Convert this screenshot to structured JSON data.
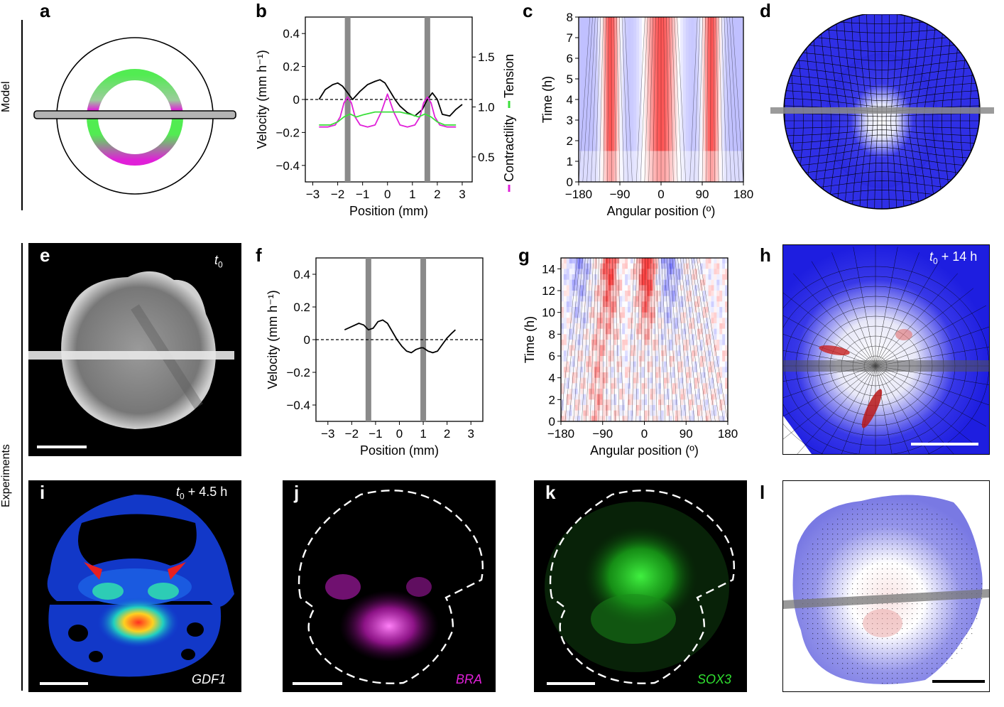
{
  "side_labels": {
    "model": "Model",
    "experiments": "Experiments"
  },
  "panel_labels": [
    "a",
    "b",
    "c",
    "d",
    "e",
    "f",
    "g",
    "h",
    "i",
    "j",
    "k",
    "l"
  ],
  "colors": {
    "magenta": "#e020d8",
    "green": "#3adf3a",
    "grey": "#808080"
  },
  "panel_e": {
    "time": "t",
    "sub": "0"
  },
  "panel_h": {
    "time": "t",
    "sub": "0",
    "suffix": " + 14 h"
  },
  "panel_i": {
    "time": "t",
    "sub": "0",
    "suffix": " + 4.5 h",
    "gene": "GDF1"
  },
  "panel_j": {
    "gene": "BRA"
  },
  "panel_k": {
    "gene": "SOX3"
  },
  "chart_data": [
    {
      "id": "b",
      "type": "line",
      "xlabel": "Position (mm)",
      "ylabel": "Velocity (mm h⁻¹)",
      "y2label_contractility": "Contractility",
      "y2label_tension": "Tension",
      "xlim": [
        -3.3,
        3.4
      ],
      "ylim": [
        -0.5,
        0.5
      ],
      "y2lim": [
        0.25,
        1.9
      ],
      "x_ticks": [
        -3,
        -2,
        -1,
        0,
        1,
        2,
        3
      ],
      "x_tick_labels": [
        "−3",
        "−2",
        "−1",
        "0",
        "1",
        "2",
        "3"
      ],
      "y_ticks": [
        0.4,
        0.2,
        0,
        -0.2,
        -0.4
      ],
      "y_tick_labels": [
        "0.4",
        "0.2",
        "0",
        "−0.2",
        "−0.4"
      ],
      "y2_ticks": [
        1.5,
        1.0,
        0.5
      ],
      "y2_tick_labels": [
        "1.5",
        "1.0",
        "0.5"
      ],
      "vlines": [
        -1.6,
        1.6
      ],
      "series": [
        {
          "name": "Velocity",
          "color": "#000000",
          "axis": "left",
          "x": [
            -2.75,
            -2.5,
            -2.2,
            -2.0,
            -1.8,
            -1.6,
            -1.4,
            -1.1,
            -0.8,
            -0.5,
            -0.3,
            -0.1,
            0.1,
            0.3,
            0.5,
            0.8,
            1.1,
            1.4,
            1.6,
            1.8,
            2.0,
            2.2,
            2.5,
            2.75,
            3.0
          ],
          "y": [
            0.0,
            0.06,
            0.09,
            0.1,
            0.08,
            0.04,
            0.0,
            0.05,
            0.09,
            0.11,
            0.12,
            0.1,
            0.05,
            0.0,
            -0.04,
            -0.08,
            -0.1,
            -0.06,
            0.0,
            0.04,
            0.0,
            -0.09,
            -0.1,
            -0.06,
            -0.03
          ]
        },
        {
          "name": "Contractility",
          "color": "#e020d8",
          "axis": "right",
          "x": [
            -2.75,
            -2.4,
            -2.1,
            -1.9,
            -1.75,
            -1.6,
            -1.45,
            -1.3,
            -1.1,
            -0.8,
            -0.5,
            -0.25,
            0.0,
            0.25,
            0.5,
            0.8,
            1.1,
            1.3,
            1.45,
            1.6,
            1.75,
            1.9,
            2.1,
            2.4,
            2.75
          ],
          "y": [
            0.8,
            0.8,
            0.82,
            0.9,
            1.04,
            1.1,
            1.04,
            0.9,
            0.82,
            0.8,
            0.82,
            0.95,
            1.13,
            0.95,
            0.82,
            0.8,
            0.82,
            0.9,
            1.04,
            1.1,
            1.04,
            0.9,
            0.82,
            0.8,
            0.8
          ]
        },
        {
          "name": "Tension",
          "color": "#3adf3a",
          "axis": "right",
          "x": [
            -2.75,
            -2.3,
            -2.0,
            -1.75,
            -1.5,
            -1.25,
            -1.0,
            -0.5,
            0.0,
            0.5,
            1.0,
            1.25,
            1.5,
            1.75,
            2.0,
            2.3,
            2.75
          ],
          "y": [
            0.82,
            0.82,
            0.85,
            0.9,
            0.93,
            0.9,
            0.92,
            0.95,
            0.95,
            0.95,
            0.92,
            0.9,
            0.93,
            0.9,
            0.85,
            0.82,
            0.82
          ]
        }
      ]
    },
    {
      "id": "c",
      "type": "heatmap",
      "xlabel": "Angular position (º)",
      "ylabel": "Time (h)",
      "xlim": [
        -180,
        180
      ],
      "ylim": [
        0,
        8
      ],
      "x_ticks": [
        -180,
        -90,
        0,
        90,
        180
      ],
      "x_tick_labels": [
        "−180",
        "−90",
        "0",
        "90",
        "180"
      ],
      "y_ticks": [
        0,
        1,
        2,
        3,
        4,
        5,
        6,
        7,
        8
      ],
      "y_tick_labels": [
        "0",
        "1",
        "2",
        "3",
        "4",
        "5",
        "6",
        "7",
        "8"
      ],
      "red_bands_center": [
        -110,
        0,
        110
      ]
    },
    {
      "id": "f",
      "type": "line",
      "xlabel": "Position (mm)",
      "ylabel": "Velocity (mm h⁻¹)",
      "xlim": [
        -3.5,
        3.5
      ],
      "ylim": [
        -0.5,
        0.5
      ],
      "x_ticks": [
        -3,
        -2,
        -1,
        0,
        1,
        2,
        3
      ],
      "x_tick_labels": [
        "−3",
        "−2",
        "−1",
        "0",
        "1",
        "2",
        "3"
      ],
      "y_ticks": [
        0.4,
        0.2,
        0,
        -0.2,
        -0.4
      ],
      "y_tick_labels": [
        "0.4",
        "0.2",
        "0",
        "−0.2",
        "−0.4"
      ],
      "vlines": [
        -1.3,
        1.0
      ],
      "series": [
        {
          "name": "Velocity",
          "color": "#000000",
          "x": [
            -2.3,
            -2.0,
            -1.7,
            -1.5,
            -1.3,
            -1.1,
            -0.9,
            -0.7,
            -0.5,
            -0.3,
            -0.1,
            0.1,
            0.3,
            0.5,
            0.7,
            0.9,
            1.0,
            1.2,
            1.4,
            1.6,
            1.8,
            2.0,
            2.2,
            2.35
          ],
          "y": [
            0.06,
            0.08,
            0.1,
            0.09,
            0.06,
            0.07,
            0.11,
            0.12,
            0.1,
            0.05,
            0.0,
            -0.04,
            -0.07,
            -0.08,
            -0.06,
            -0.05,
            -0.05,
            -0.07,
            -0.08,
            -0.07,
            -0.03,
            0.01,
            0.04,
            0.06
          ]
        }
      ]
    },
    {
      "id": "g",
      "type": "heatmap",
      "xlabel": "Angular position (º)",
      "ylabel": "Time (h)",
      "xlim": [
        -180,
        180
      ],
      "ylim": [
        0,
        15
      ],
      "x_ticks": [
        -180,
        -90,
        0,
        90,
        180
      ],
      "x_tick_labels": [
        "−180",
        "−90",
        "0",
        "90",
        "180"
      ],
      "y_ticks": [
        0,
        2,
        4,
        6,
        8,
        10,
        12,
        14
      ],
      "y_tick_labels": [
        "0",
        "2",
        "4",
        "6",
        "8",
        "10",
        "12",
        "14"
      ]
    }
  ]
}
